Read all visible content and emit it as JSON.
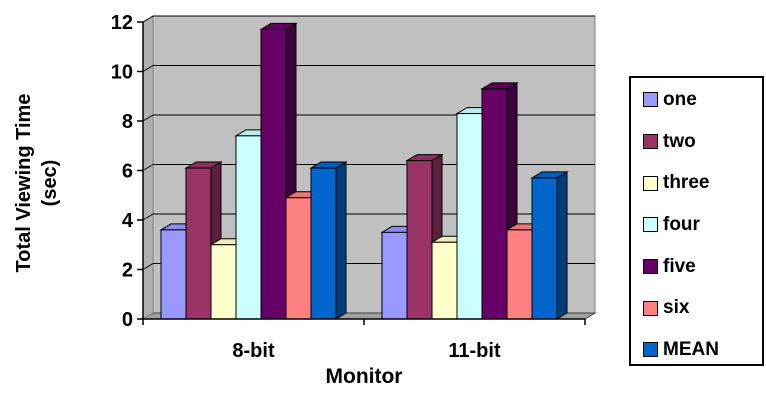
{
  "chart_data": {
    "type": "bar",
    "title": "",
    "xlabel": "Monitor",
    "ylabel_lines": [
      "Total Viewing Time",
      "(sec)"
    ],
    "categories": [
      "8-bit",
      "11-bit"
    ],
    "ylim": [
      0,
      12
    ],
    "yticks": [
      "0",
      "2",
      "4",
      "6",
      "8",
      "10",
      "12"
    ],
    "grid": true,
    "three_d": true,
    "legend_position": "right",
    "series": [
      {
        "name": "one",
        "color": "#9999FF",
        "values": [
          3.6,
          3.5
        ]
      },
      {
        "name": "two",
        "color": "#993366",
        "values": [
          6.1,
          6.4
        ]
      },
      {
        "name": "three",
        "color": "#FFFFCC",
        "values": [
          3.0,
          3.1
        ]
      },
      {
        "name": "four",
        "color": "#CCFFFF",
        "values": [
          7.4,
          8.3
        ]
      },
      {
        "name": "five",
        "color": "#660066",
        "values": [
          11.7,
          9.3
        ]
      },
      {
        "name": "six",
        "color": "#FF8080",
        "values": [
          4.9,
          3.6
        ]
      },
      {
        "name": "MEAN",
        "color": "#0066CC",
        "values": [
          6.1,
          5.7
        ]
      }
    ]
  }
}
